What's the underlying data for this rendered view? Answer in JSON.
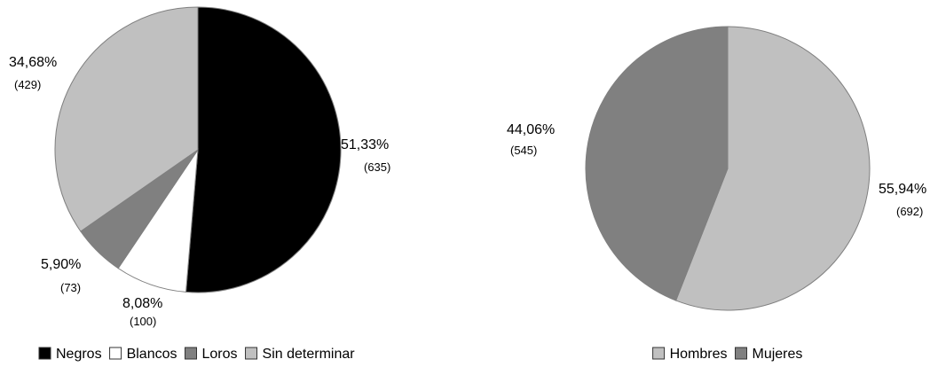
{
  "chart_data": [
    {
      "type": "pie",
      "title": "",
      "slices": [
        {
          "label": "Negros",
          "value": 635,
          "percent_label": "51,33%",
          "count_label": "(635)",
          "color": "#000000"
        },
        {
          "label": "Blancos",
          "value": 100,
          "percent_label": "8,08%",
          "count_label": "(100)",
          "color": "#ffffff"
        },
        {
          "label": "Loros",
          "value": 73,
          "percent_label": "5,90%",
          "count_label": "(73)",
          "color": "#808080"
        },
        {
          "label": "Sin determinar",
          "value": 429,
          "percent_label": "34,68%",
          "count_label": "(429)",
          "color": "#c0c0c0"
        }
      ],
      "legend_position": "bottom"
    },
    {
      "type": "pie",
      "title": "",
      "slices": [
        {
          "label": "Hombres",
          "value": 692,
          "percent_label": "55,94%",
          "count_label": "(692)",
          "color": "#c0c0c0"
        },
        {
          "label": "Mujeres",
          "value": 545,
          "percent_label": "44,06%",
          "count_label": "(545)",
          "color": "#808080"
        }
      ],
      "legend_position": "bottom"
    }
  ]
}
